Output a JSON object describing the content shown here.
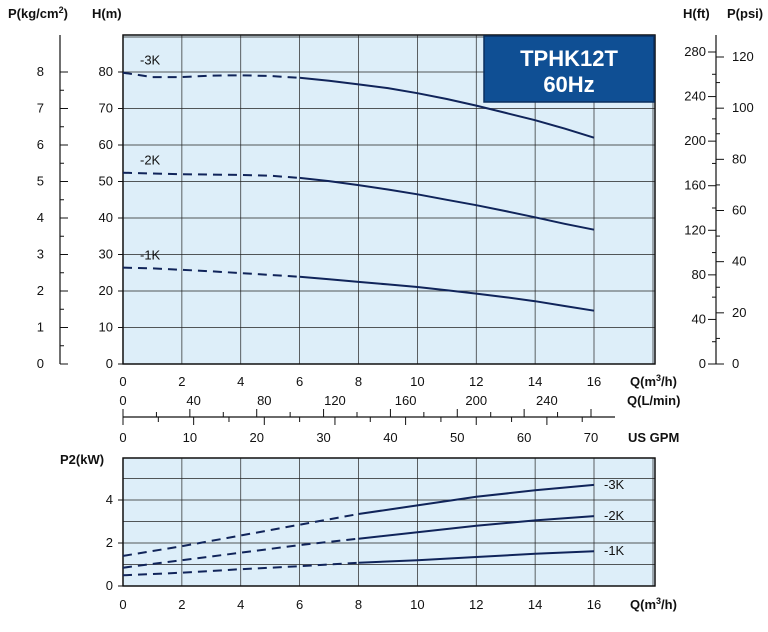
{
  "chart_data": [
    {
      "type": "line",
      "title": "TPHK12T",
      "subtitle": "60Hz",
      "xlabel": "Q(m3/h)",
      "x_unit_label": "Q(m",
      "x_unit_sup": "3",
      "x_unit_end": "/h)",
      "ylabel_left": "H(m)",
      "ylabel_pressure": "P(kg/cm",
      "ylabel_pressure_sup": "2",
      "ylabel_pressure_end": ")",
      "ylabel_right_ft": "H(ft)",
      "ylabel_right_psi": "P(psi)",
      "xlim": [
        0,
        16
      ],
      "ylim": [
        0,
        80
      ],
      "grid": true,
      "x_ticks": [
        "0",
        "2",
        "4",
        "6",
        "8",
        "10",
        "12",
        "14",
        "16"
      ],
      "y_ticks": [
        "0",
        "10",
        "20",
        "30",
        "40",
        "50",
        "60",
        "70",
        "80"
      ],
      "kg_ticks": [
        "0",
        "1",
        "2",
        "3",
        "4",
        "5",
        "6",
        "7",
        "8"
      ],
      "ft_ticks": [
        "0",
        "40",
        "80",
        "120",
        "160",
        "200",
        "240",
        "280"
      ],
      "psi_ticks": [
        "0",
        "20",
        "40",
        "60",
        "80",
        "100",
        "120"
      ],
      "lmin_label": "Q(L/min)",
      "lmin_ticks": [
        "0",
        "40",
        "80",
        "120",
        "160",
        "200",
        "240"
      ],
      "gpm_label": "US GPM",
      "gpm_ticks": [
        "0",
        "10",
        "20",
        "30",
        "40",
        "50",
        "60",
        "70"
      ],
      "series": [
        {
          "name": "-3K",
          "x": [
            0,
            1,
            2,
            3,
            4,
            5,
            6,
            7,
            8,
            9,
            10,
            11,
            12,
            13,
            14,
            15,
            16
          ],
          "y": [
            79.8,
            78.6,
            78.6,
            79.0,
            79.1,
            78.9,
            78.4,
            77.6,
            76.6,
            75.6,
            74.2,
            72.6,
            70.8,
            68.8,
            66.8,
            64.5,
            62.0
          ],
          "dashed_until": 6.5
        },
        {
          "name": "-2K",
          "x": [
            0,
            1,
            2,
            3,
            4,
            5,
            6,
            7,
            8,
            9,
            10,
            11,
            12,
            13,
            14,
            15,
            16
          ],
          "y": [
            52.4,
            52.2,
            52.0,
            51.9,
            51.8,
            51.6,
            51.0,
            50.1,
            49.0,
            47.8,
            46.5,
            45.0,
            43.5,
            41.9,
            40.2,
            38.4,
            36.8
          ],
          "dashed_until": 6.5
        },
        {
          "name": "-1K",
          "x": [
            0,
            1,
            2,
            3,
            4,
            5,
            6,
            7,
            8,
            9,
            10,
            11,
            12,
            13,
            14,
            15,
            16
          ],
          "y": [
            26.4,
            26.2,
            25.8,
            25.4,
            24.9,
            24.4,
            23.9,
            23.2,
            22.5,
            21.8,
            21.1,
            20.2,
            19.3,
            18.3,
            17.2,
            15.9,
            14.6
          ],
          "dashed_until": 6.5
        }
      ]
    },
    {
      "type": "line",
      "ylabel": "P2(kW)",
      "xlabel": "Q(m3/h)",
      "x_unit_label": "Q(m",
      "x_unit_sup": "3",
      "x_unit_end": "/h)",
      "xlim": [
        0,
        16
      ],
      "ylim": [
        0,
        5
      ],
      "grid": true,
      "x_ticks": [
        "0",
        "2",
        "4",
        "6",
        "8",
        "10",
        "12",
        "14",
        "16"
      ],
      "y_ticks": [
        "0",
        "2",
        "4"
      ],
      "series": [
        {
          "name": "-3K",
          "x": [
            0,
            2,
            4,
            6,
            8,
            10,
            12,
            14,
            16
          ],
          "y": [
            1.4,
            1.85,
            2.35,
            2.85,
            3.35,
            3.75,
            4.15,
            4.45,
            4.7
          ],
          "dashed_until": 8
        },
        {
          "name": "-2K",
          "x": [
            0,
            2,
            4,
            6,
            8,
            10,
            12,
            14,
            16
          ],
          "y": [
            0.85,
            1.2,
            1.55,
            1.9,
            2.2,
            2.5,
            2.8,
            3.05,
            3.25
          ],
          "dashed_until": 8
        },
        {
          "name": "-1K",
          "x": [
            0,
            2,
            4,
            6,
            8,
            10,
            12,
            14,
            16
          ],
          "y": [
            0.5,
            0.62,
            0.78,
            0.92,
            1.08,
            1.2,
            1.35,
            1.5,
            1.62
          ],
          "dashed_until": 8
        }
      ]
    }
  ],
  "colors": {
    "curve": "#10245a",
    "plot_bg": "#ddeef9",
    "title_box": "#0f4f94"
  }
}
